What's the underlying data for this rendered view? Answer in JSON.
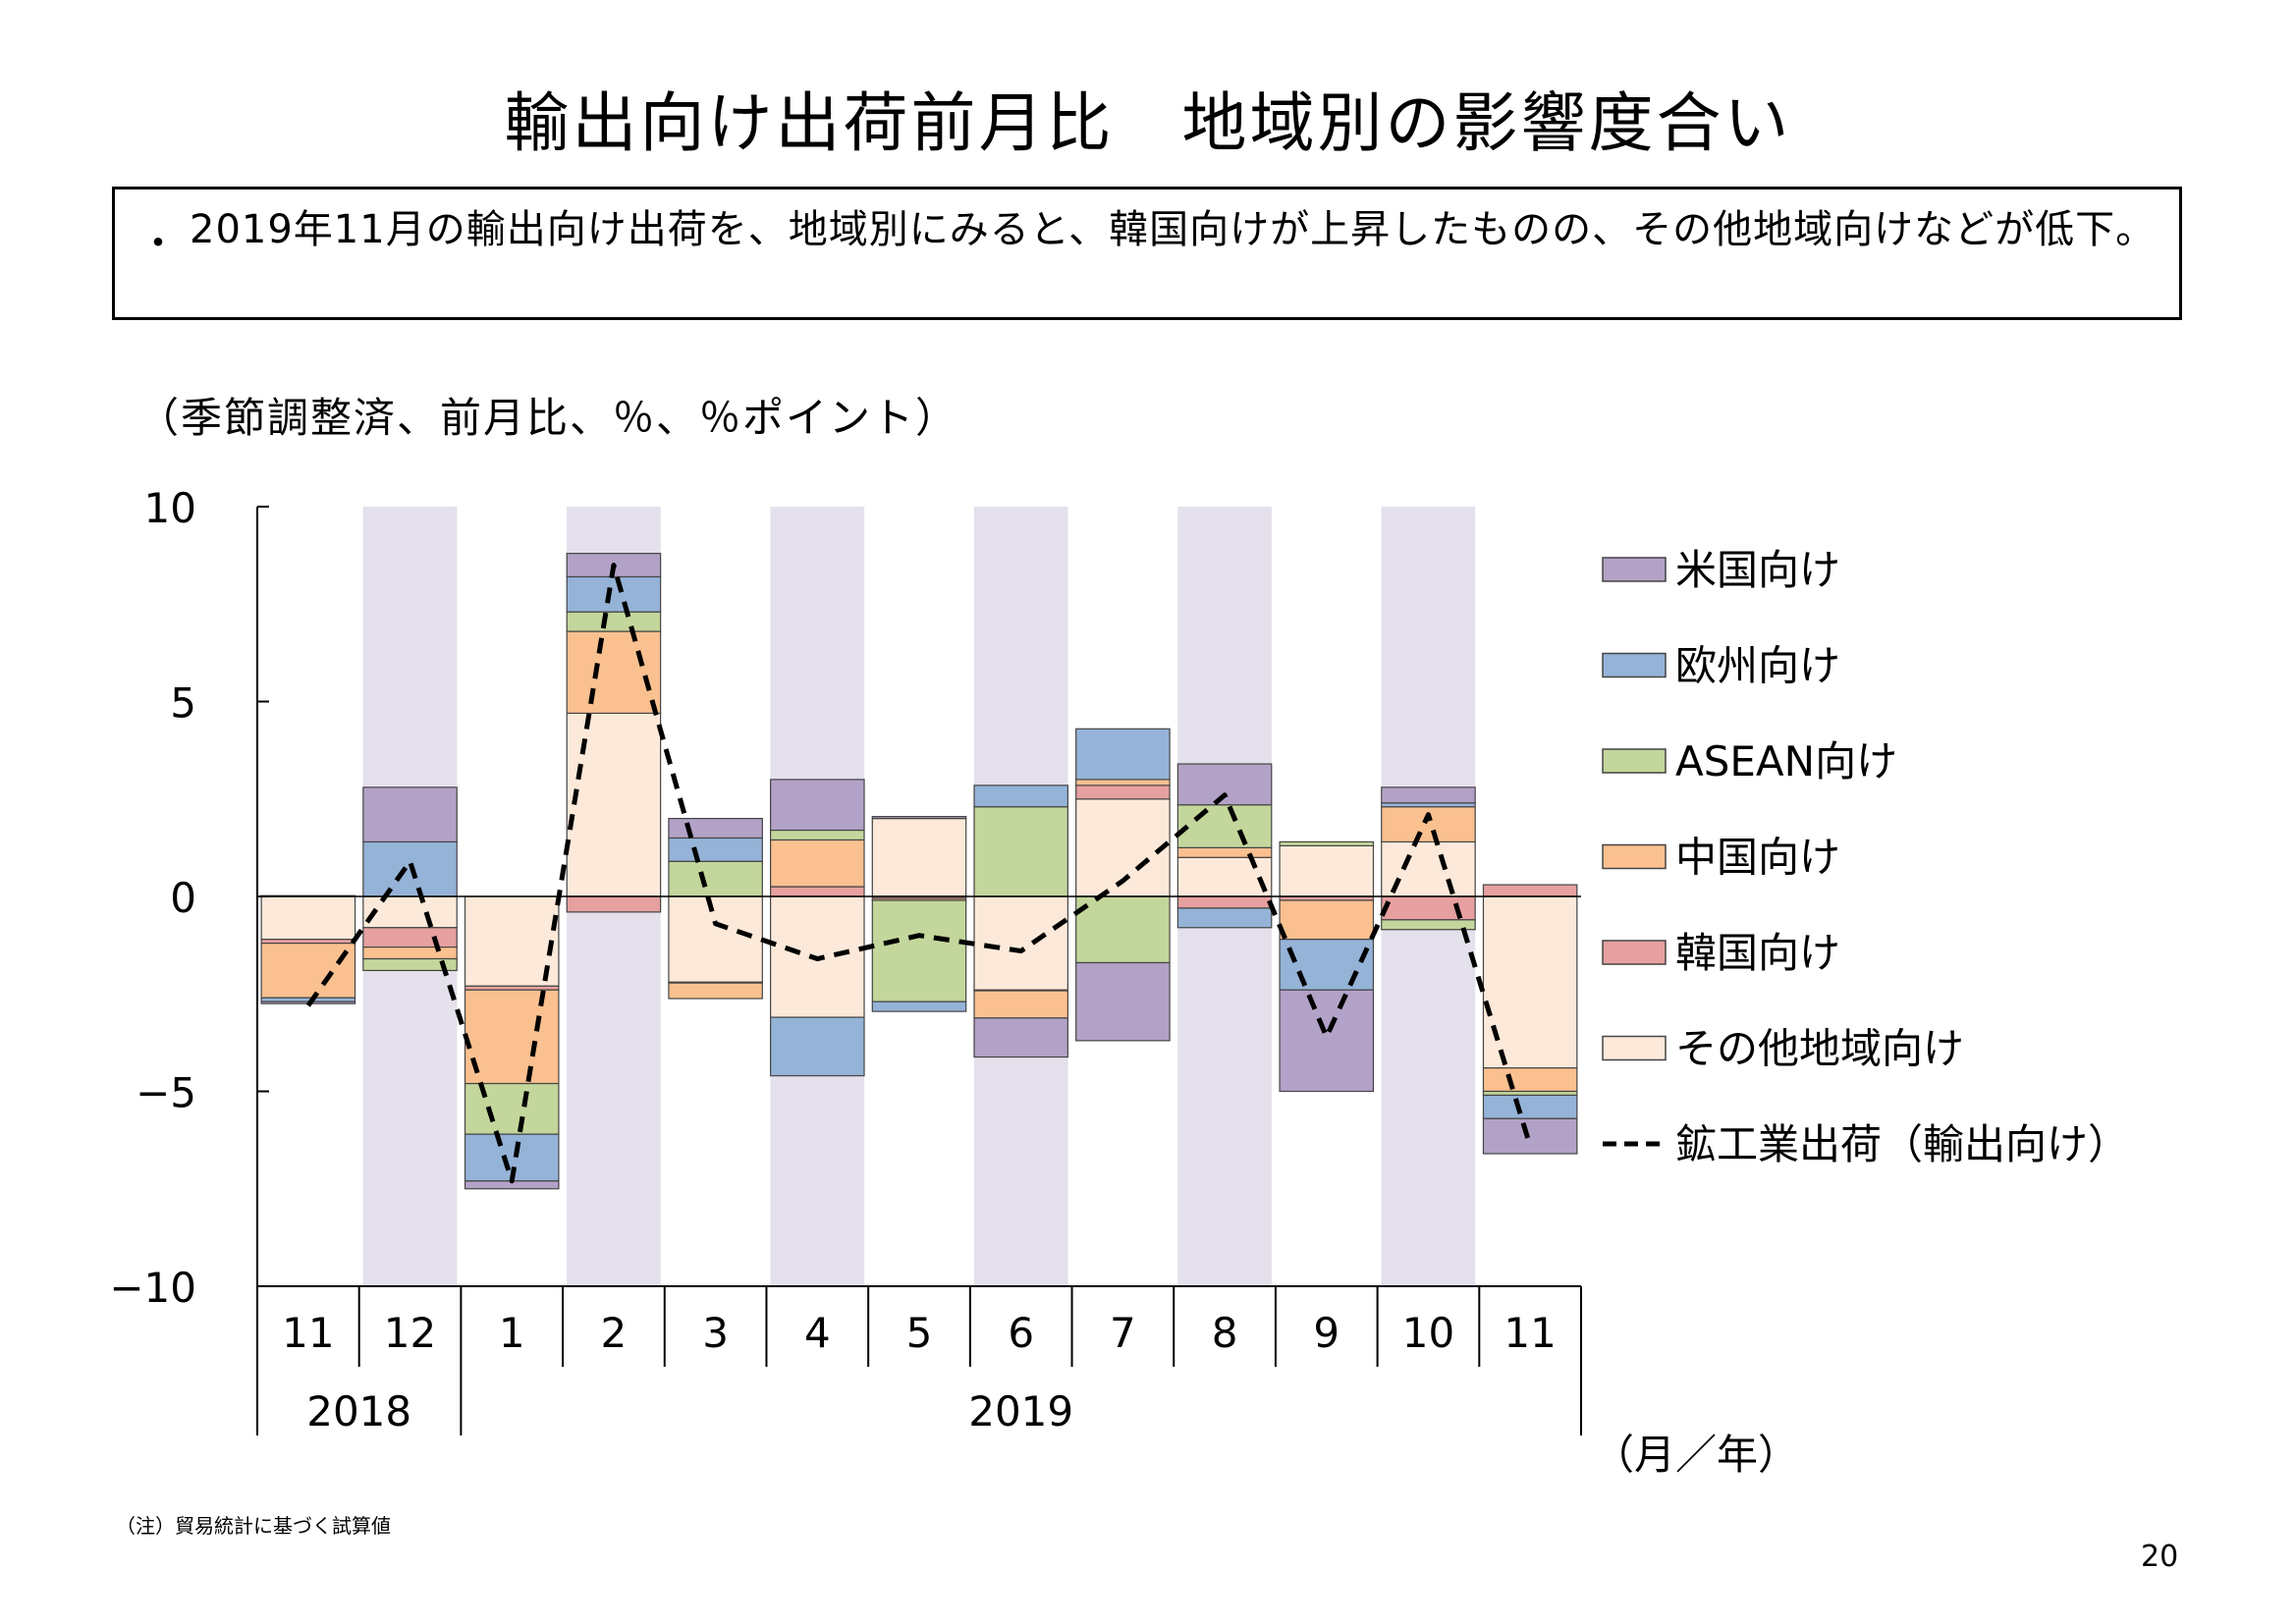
{
  "page": {
    "title": "輸出向け出荷前月比　地域別の影響度合い",
    "summary_bullet": "・",
    "summary_text": "2019年11月の輸出向け出荷を、地域別にみると、韓国向けが上昇したものの、その他地域向けなどが低下。",
    "units_note": "（季節調整済、前月比、％、％ポイント）",
    "footnote": "（注）貿易統計に基づく試算値",
    "page_number": "20"
  },
  "chart_data": {
    "type": "bar",
    "stacked": true,
    "overlay_line": true,
    "xlabel": "（月／年）",
    "ylim": [
      -10,
      10
    ],
    "yticks": [
      10,
      5,
      0,
      -5,
      -10
    ],
    "categories": [
      "11",
      "12",
      "1",
      "2",
      "3",
      "4",
      "5",
      "6",
      "7",
      "8",
      "9",
      "10",
      "11"
    ],
    "year_groups": [
      {
        "label": "2018",
        "span": [
          0,
          1
        ]
      },
      {
        "label": "2019",
        "span": [
          2,
          12
        ]
      }
    ],
    "shaded_categories": [
      1,
      3,
      5,
      7,
      9,
      11
    ],
    "shade_color": "#e4e0ec",
    "series": [
      {
        "name": "その他地域向け",
        "color": "#fde9d9",
        "values": [
          -1.1,
          -0.8,
          -2.3,
          4.7,
          -2.2,
          -3.1,
          2.0,
          -2.4,
          2.5,
          1.0,
          1.3,
          1.4,
          -4.4
        ]
      },
      {
        "name": "韓国向け",
        "color": "#e6a09f",
        "values": [
          -0.1,
          -0.5,
          -0.1,
          -0.4,
          -0.02,
          0.25,
          -0.05,
          -0.02,
          0.35,
          -0.3,
          -0.1,
          -0.6,
          0.3
        ]
      },
      {
        "name": "中国向け",
        "color": "#fac090",
        "values": [
          -1.4,
          -0.3,
          -2.4,
          2.1,
          -0.4,
          1.2,
          -0.05,
          -0.7,
          0.15,
          0.25,
          -1.0,
          0.9,
          -0.6
        ]
      },
      {
        "name": "ASEAN向け",
        "color": "#c3d69b",
        "values": [
          0.02,
          -0.3,
          -1.3,
          0.5,
          0.9,
          0.25,
          -2.6,
          2.3,
          -1.7,
          1.1,
          0.1,
          -0.25,
          -0.1
        ]
      },
      {
        "name": "欧州向け",
        "color": "#95b3d7",
        "values": [
          -0.1,
          1.4,
          -1.2,
          0.9,
          0.6,
          -1.5,
          -0.25,
          0.55,
          1.3,
          -0.5,
          -1.3,
          0.1,
          -0.6
        ]
      },
      {
        "name": "米国向け",
        "color": "#b3a2c7",
        "values": [
          -0.05,
          1.4,
          -0.2,
          0.6,
          0.5,
          1.3,
          0.05,
          -1.0,
          -2.0,
          1.05,
          -2.6,
          0.4,
          -0.9
        ]
      }
    ],
    "line": {
      "name": "鉱工業出荷（輸出向け）",
      "color": "#000000",
      "values": [
        -2.8,
        0.9,
        -7.3,
        8.5,
        -0.7,
        -1.6,
        -1.0,
        -1.4,
        0.4,
        2.6,
        -3.6,
        2.1,
        -6.4
      ]
    },
    "legend_order": [
      "米国向け",
      "欧州向け",
      "ASEAN向け",
      "中国向け",
      "韓国向け",
      "その他地域向け",
      "鉱工業出荷（輸出向け）"
    ],
    "legend_position": "right"
  }
}
